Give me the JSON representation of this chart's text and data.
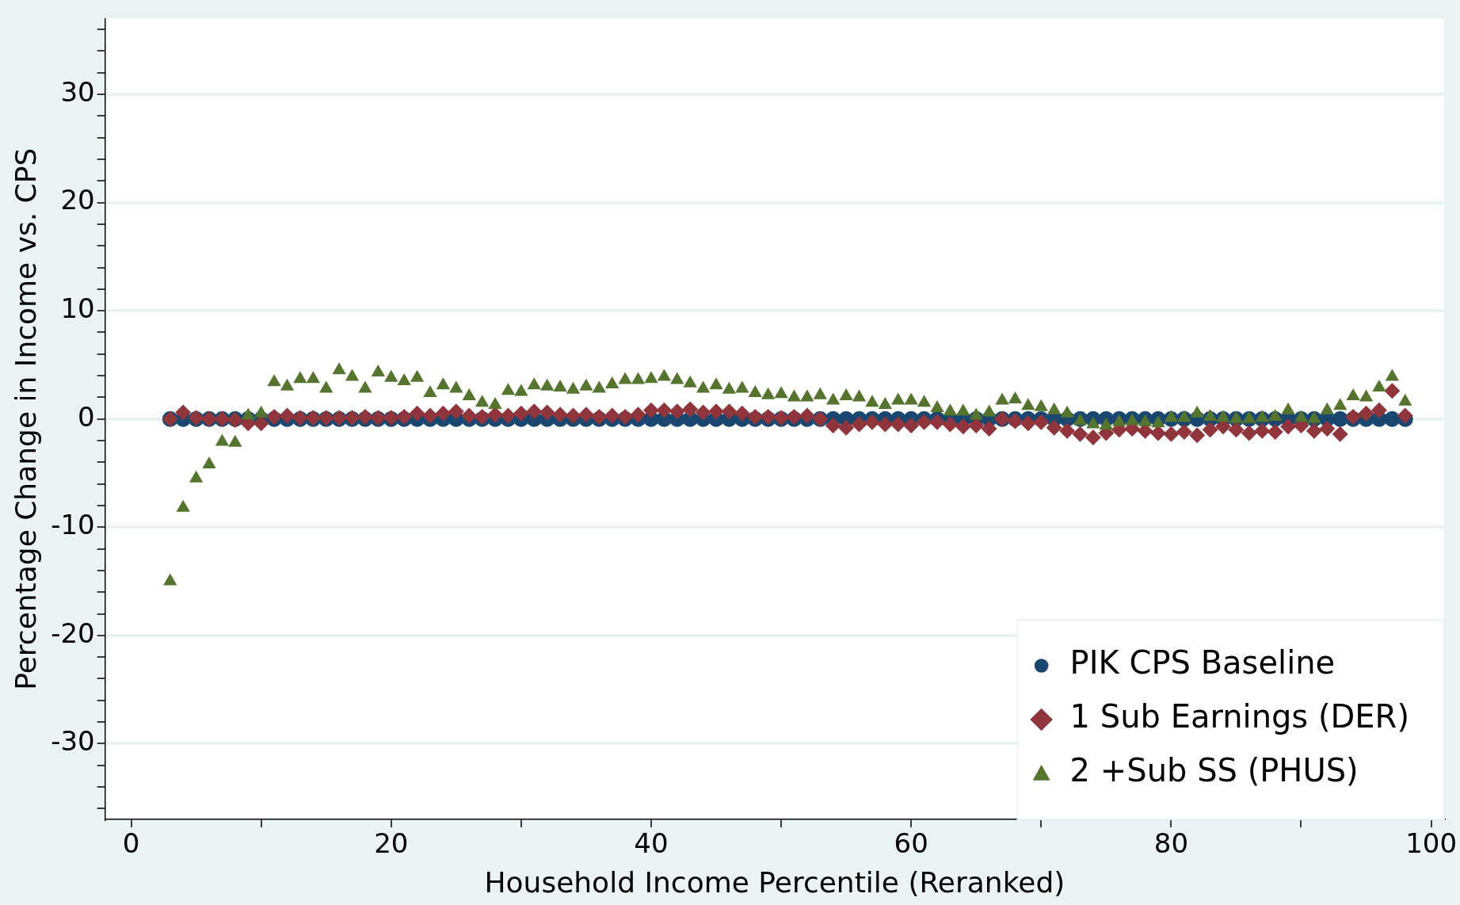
{
  "chart_data": {
    "type": "scatter",
    "xlabel": "Household Income Percentile (Reranked)",
    "ylabel": "Percentage Change in Income vs. CPS",
    "x": [
      3,
      4,
      5,
      6,
      7,
      8,
      9,
      10,
      11,
      12,
      13,
      14,
      15,
      16,
      17,
      18,
      19,
      20,
      21,
      22,
      23,
      24,
      25,
      26,
      27,
      28,
      29,
      30,
      31,
      32,
      33,
      34,
      35,
      36,
      37,
      38,
      39,
      40,
      41,
      42,
      43,
      44,
      45,
      46,
      47,
      48,
      49,
      50,
      51,
      52,
      53,
      54,
      55,
      56,
      57,
      58,
      59,
      60,
      61,
      62,
      63,
      64,
      65,
      66,
      67,
      68,
      69,
      70,
      71,
      72,
      73,
      74,
      75,
      76,
      77,
      78,
      79,
      80,
      81,
      82,
      83,
      84,
      85,
      86,
      87,
      88,
      89,
      90,
      91,
      92,
      93,
      94,
      95,
      96,
      97,
      98
    ],
    "xlim": [
      -2,
      101
    ],
    "xticks": [
      0,
      {
        "value": 10,
        "label": null
      },
      20,
      {
        "value": 30,
        "label": null
      },
      40,
      {
        "value": 50,
        "label": null
      },
      60,
      {
        "value": 70,
        "label": null
      },
      80,
      {
        "value": 90,
        "label": null
      },
      100
    ],
    "ylim": [
      -37,
      37
    ],
    "yticks": [
      {
        "value": -36,
        "label": null
      },
      {
        "value": -34,
        "label": null
      },
      {
        "value": -32,
        "label": null
      },
      -30,
      {
        "value": -28,
        "label": null
      },
      {
        "value": -26,
        "label": null
      },
      {
        "value": -24,
        "label": null
      },
      {
        "value": -22,
        "label": null
      },
      -20,
      {
        "value": -18,
        "label": null
      },
      {
        "value": -16,
        "label": null
      },
      {
        "value": -14,
        "label": null
      },
      {
        "value": -12,
        "label": null
      },
      -10,
      {
        "value": -8,
        "label": null
      },
      {
        "value": -6,
        "label": null
      },
      {
        "value": -4,
        "label": null
      },
      {
        "value": -2,
        "label": null
      },
      0,
      {
        "value": 2,
        "label": null
      },
      {
        "value": 4,
        "label": null
      },
      {
        "value": 6,
        "label": null
      },
      {
        "value": 8,
        "label": null
      },
      10,
      {
        "value": 12,
        "label": null
      },
      {
        "value": 14,
        "label": null
      },
      {
        "value": 16,
        "label": null
      },
      {
        "value": 18,
        "label": null
      },
      20,
      {
        "value": 22,
        "label": null
      },
      {
        "value": 24,
        "label": null
      },
      {
        "value": 26,
        "label": null
      },
      {
        "value": 28,
        "label": null
      },
      30,
      {
        "value": 32,
        "label": null
      },
      {
        "value": 34,
        "label": null
      },
      {
        "value": 36,
        "label": null
      }
    ],
    "grid": "y",
    "legend": "bottom right",
    "series": [
      {
        "name": "PIK CPS Baseline",
        "color": "#1a476f",
        "marker": "circle",
        "values": [
          0,
          0,
          0,
          0,
          0,
          0,
          0,
          0,
          0,
          0,
          0,
          0,
          0,
          0,
          0,
          0,
          0,
          0,
          0,
          0,
          0,
          0,
          0,
          0,
          0,
          0,
          0,
          0,
          0,
          0,
          0,
          0,
          0,
          0,
          0,
          0,
          0,
          0,
          0,
          0,
          0,
          0,
          0,
          0,
          0,
          0,
          0,
          0,
          0,
          0,
          0,
          0,
          0,
          0,
          0,
          0,
          0,
          0,
          0,
          0,
          0,
          0,
          0,
          0,
          0,
          0,
          0,
          0,
          0,
          0,
          0,
          0,
          0,
          0,
          0,
          0,
          0,
          0,
          0,
          0,
          0,
          0,
          0,
          0,
          0,
          0,
          0,
          0,
          0,
          0,
          0,
          0,
          0,
          0,
          0,
          0
        ]
      },
      {
        "name": "1 Sub Earnings (DER)",
        "color": "#90353b",
        "marker": "diamond",
        "values": [
          0,
          0.6,
          0.1,
          0,
          0,
          -0.1,
          -0.4,
          -0.4,
          0.2,
          0.3,
          0.1,
          0.1,
          0.1,
          0.1,
          0.1,
          0.2,
          0.1,
          0.1,
          0.2,
          0.5,
          0.3,
          0.5,
          0.7,
          0.3,
          0.2,
          0.4,
          0.3,
          0.5,
          0.7,
          0.6,
          0.4,
          0.3,
          0.4,
          0.2,
          0.3,
          0.2,
          0.4,
          0.8,
          0.8,
          0.7,
          0.9,
          0.6,
          0.7,
          0.7,
          0.5,
          0.2,
          0.2,
          0.1,
          0.2,
          0.3,
          0,
          -0.6,
          -0.8,
          -0.5,
          -0.3,
          -0.5,
          -0.5,
          -0.6,
          -0.3,
          -0.3,
          -0.5,
          -0.7,
          -0.6,
          -0.9,
          0,
          -0.2,
          -0.4,
          -0.3,
          -0.8,
          -1.1,
          -1.4,
          -1.7,
          -1.3,
          -1,
          -0.9,
          -1.1,
          -1.3,
          -1.4,
          -1.2,
          -1.5,
          -1,
          -0.7,
          -1,
          -1.3,
          -1.1,
          -1.2,
          -0.7,
          -0.6,
          -1.1,
          -0.9,
          -1.4,
          0.2,
          0.5,
          0.8,
          2.6,
          0.3
        ]
      },
      {
        "name": "2 +Sub SS (PHUS)",
        "color": "#55752f",
        "marker": "triangle",
        "values": [
          -15,
          -8.2,
          -5.5,
          -4.2,
          -2.1,
          -2.2,
          0.3,
          0.5,
          3.4,
          3,
          3.7,
          3.7,
          2.8,
          4.5,
          3.9,
          2.8,
          4.3,
          3.8,
          3.5,
          3.8,
          2.4,
          3.1,
          2.8,
          2.1,
          1.5,
          1.3,
          2.6,
          2.5,
          3.1,
          3,
          2.9,
          2.7,
          3,
          2.8,
          3.2,
          3.6,
          3.6,
          3.7,
          3.9,
          3.6,
          3.3,
          2.8,
          3.1,
          2.7,
          2.8,
          2.4,
          2.2,
          2.3,
          2,
          2,
          2.2,
          1.7,
          2.1,
          2,
          1.5,
          1.3,
          1.7,
          1.7,
          1.5,
          1,
          0.7,
          0.7,
          0.3,
          0.6,
          1.7,
          1.8,
          1.2,
          1.1,
          0.8,
          0.5,
          -0.2,
          -0.5,
          -0.6,
          -0.3,
          -0.2,
          -0.3,
          -0.4,
          0.1,
          0.1,
          0.5,
          0.2,
          0.1,
          0,
          0,
          0.1,
          0.2,
          0.8,
          0.1,
          0,
          0.8,
          1.2,
          2.1,
          2,
          2.9,
          3.9,
          1.6
        ]
      }
    ]
  }
}
